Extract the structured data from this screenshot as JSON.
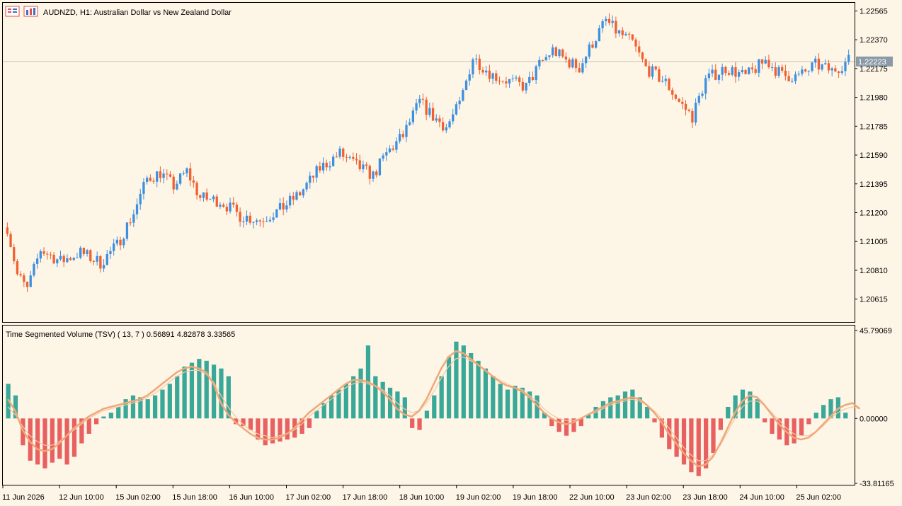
{
  "header": {
    "symbol_line": "AUDNZD, H1:  Australian Dollar vs New Zealand Dollar",
    "icons": [
      "chart-menu-icon",
      "chart-window-icon"
    ]
  },
  "colors": {
    "background": "#fdf5e6",
    "bull": "#3d8fe0",
    "bear": "#f06030",
    "hist_pos": "#3aa898",
    "hist_neg": "#e86060",
    "tsv_line": "#f0a878",
    "signal_line": "#f4c8a8",
    "price_label_bg": "#8c9aa8"
  },
  "chart_data": [
    {
      "type": "candlestick",
      "title": "AUDNZD, H1:  Australian Dollar vs New Zealand Dollar",
      "ylim": [
        1.2046,
        1.2262
      ],
      "y_ticks": [
        "1.22565",
        "1.22370",
        "1.22175",
        "1.21980",
        "1.21785",
        "1.21590",
        "1.21395",
        "1.21200",
        "1.21005",
        "1.20810",
        "1.20615"
      ],
      "current_price": 1.22223,
      "current_price_label": "1.22223",
      "x_ticks": [
        "11 Jun 2026",
        "12 Jun 10:00",
        "15 Jun 02:00",
        "15 Jun 18:00",
        "16 Jun 10:00",
        "17 Jun 02:00",
        "17 Jun 18:00",
        "18 Jun 10:00",
        "19 Jun 02:00",
        "19 Jun 18:00",
        "22 Jun 10:00",
        "23 Jun 02:00",
        "23 Jun 18:00",
        "24 Jun 10:00",
        "25 Jun 02:00"
      ],
      "close_path": [
        [
          0,
          1.211
        ],
        [
          3,
          1.2078
        ],
        [
          6,
          1.2068
        ],
        [
          10,
          1.2095
        ],
        [
          16,
          1.2087
        ],
        [
          22,
          1.2093
        ],
        [
          28,
          1.2086
        ],
        [
          33,
          1.2098
        ],
        [
          38,
          1.212
        ],
        [
          42,
          1.2143
        ],
        [
          46,
          1.2147
        ],
        [
          50,
          1.2138
        ],
        [
          54,
          1.2148
        ],
        [
          58,
          1.213
        ],
        [
          64,
          1.2128
        ],
        [
          70,
          1.2118
        ],
        [
          76,
          1.2115
        ],
        [
          82,
          1.2122
        ],
        [
          88,
          1.2133
        ],
        [
          94,
          1.215
        ],
        [
          100,
          1.216
        ],
        [
          104,
          1.2153
        ],
        [
          110,
          1.2145
        ],
        [
          114,
          1.216
        ],
        [
          119,
          1.2172
        ],
        [
          124,
          1.2195
        ],
        [
          128,
          1.2185
        ],
        [
          132,
          1.2178
        ],
        [
          136,
          1.2193
        ],
        [
          140,
          1.2225
        ],
        [
          146,
          1.2213
        ],
        [
          152,
          1.2208
        ],
        [
          156,
          1.2205
        ],
        [
          160,
          1.222
        ],
        [
          164,
          1.223
        ],
        [
          168,
          1.2223
        ],
        [
          172,
          1.2218
        ],
        [
          176,
          1.2235
        ],
        [
          180,
          1.225
        ],
        [
          183,
          1.2243
        ],
        [
          188,
          1.2235
        ],
        [
          192,
          1.2218
        ],
        [
          198,
          1.2208
        ],
        [
          202,
          1.2195
        ],
        [
          206,
          1.2185
        ],
        [
          210,
          1.221
        ],
        [
          216,
          1.2218
        ],
        [
          222,
          1.2212
        ],
        [
          228,
          1.2223
        ],
        [
          233,
          1.2213
        ],
        [
          238,
          1.2212
        ],
        [
          243,
          1.222
        ],
        [
          248,
          1.2216
        ],
        [
          253,
          1.2223
        ]
      ],
      "candle_count": 254
    },
    {
      "type": "bar",
      "title": "Time Segmented Volume (TSV) ( 13, 7 ) 0.56891 4.82878 3.33565",
      "ylim": [
        -33.81165,
        45.79069
      ],
      "y_ticks": [
        "45.79069",
        "0.00000",
        "-33.81165"
      ],
      "series": [
        {
          "name": "TSV",
          "values": [
            18,
            12,
            -14,
            -22,
            -24,
            -26,
            -23,
            -21,
            -24,
            -20,
            -13,
            -8,
            -3,
            1,
            3,
            6,
            10,
            12,
            11,
            10,
            12,
            15,
            18,
            22,
            27,
            29,
            31,
            30,
            28,
            26,
            22,
            -3,
            -4,
            -6,
            -11,
            -14,
            -13,
            -12,
            -11,
            -10,
            -8,
            -5,
            4,
            8,
            12,
            15,
            18,
            22,
            26,
            38,
            22,
            19,
            16,
            14,
            11,
            -5,
            -6,
            4,
            12,
            22,
            32,
            40,
            38,
            34,
            30,
            26,
            22,
            18,
            15,
            17,
            16,
            14,
            12,
            3,
            -4,
            -7,
            -9,
            -7,
            -4,
            2,
            6,
            9,
            11,
            12,
            14,
            15,
            11,
            6,
            -2,
            -10,
            -16,
            -20,
            -24,
            -28,
            -30,
            -26,
            -18,
            -6,
            6,
            12,
            15,
            14,
            10,
            -2,
            -8,
            -11,
            -14,
            -13,
            -9,
            -3,
            3,
            7,
            10,
            11,
            3
          ]
        },
        {
          "name": "TSV line",
          "values": [
            10,
            4,
            -6,
            -12,
            -16,
            -17,
            -16,
            -13,
            -9,
            -5,
            -2,
            1,
            3,
            5,
            6,
            7,
            8,
            9,
            10,
            12,
            15,
            18,
            21,
            24,
            26,
            27,
            26,
            24,
            18,
            8,
            2,
            -2,
            -5,
            -8,
            -10,
            -11,
            -11,
            -10,
            -8,
            -5,
            -1,
            3,
            6,
            9,
            12,
            15,
            18,
            20,
            20,
            19,
            17,
            14,
            10,
            5,
            2,
            1,
            4,
            10,
            18,
            26,
            32,
            35,
            34,
            31,
            28,
            25,
            22,
            19,
            17,
            16,
            14,
            11,
            7,
            3,
            0,
            -2,
            -3,
            -2,
            0,
            2,
            4,
            6,
            8,
            9,
            10,
            11,
            10,
            7,
            3,
            -2,
            -8,
            -13,
            -18,
            -22,
            -25,
            -24,
            -20,
            -13,
            -5,
            3,
            9,
            12,
            11,
            7,
            2,
            -3,
            -7,
            -10,
            -11,
            -10,
            -7,
            -3,
            1,
            5,
            7,
            8,
            5
          ]
        },
        {
          "name": "Signal",
          "values": [
            6,
            2,
            -4,
            -9,
            -12,
            -14,
            -14,
            -12,
            -9,
            -6,
            -3,
            0,
            2,
            4,
            5,
            6,
            7,
            8,
            9,
            11,
            13,
            16,
            19,
            22,
            24,
            25,
            25,
            23,
            19,
            12,
            6,
            1,
            -3,
            -6,
            -8,
            -9,
            -10,
            -9,
            -8,
            -6,
            -3,
            1,
            4,
            7,
            10,
            13,
            16,
            18,
            19,
            18,
            17,
            15,
            12,
            8,
            5,
            3,
            4,
            8,
            14,
            21,
            27,
            31,
            32,
            30,
            28,
            25,
            22,
            20,
            18,
            16,
            15,
            12,
            9,
            5,
            2,
            0,
            -1,
            -1,
            0,
            2,
            3,
            5,
            7,
            8,
            9,
            10,
            9,
            7,
            4,
            0,
            -5,
            -10,
            -15,
            -19,
            -22,
            -22,
            -19,
            -14,
            -7,
            0,
            6,
            9,
            9,
            7,
            3,
            -1,
            -5,
            -8,
            -9,
            -9,
            -7,
            -4,
            0,
            3,
            5,
            6,
            5
          ]
        }
      ]
    }
  ]
}
